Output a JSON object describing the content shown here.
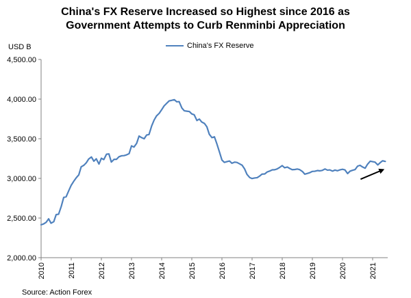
{
  "title_line1": "China's FX Reserve Increased so Highest since 2016 as",
  "title_line2": "Government Attempts to Curb Renminbi Appreciation",
  "unit_label": "USD B",
  "source": "Source: Action Forex",
  "chart_data": {
    "type": "line",
    "title": "China's FX Reserve Increased so Highest since 2016 as Government Attempts to Curb Renminbi Appreciation",
    "ylabel": "USD B",
    "xlabel": "",
    "ylim": [
      2000,
      4500
    ],
    "xlim": [
      2010,
      2021.5
    ],
    "yticks": [
      2000,
      2500,
      3000,
      3500,
      4000,
      4500
    ],
    "ytick_labels": [
      "2,000.00",
      "2,500.00",
      "3,000.00",
      "3,500.00",
      "4,000.00",
      "4,500.00"
    ],
    "xticks": [
      2010,
      2011,
      2012,
      2013,
      2014,
      2015,
      2016,
      2017,
      2018,
      2019,
      2020,
      2021
    ],
    "xtick_labels": [
      "2010",
      "2011",
      "2012",
      "2013",
      "2014",
      "2015",
      "2016",
      "2017",
      "2018",
      "2019",
      "2020",
      "2021"
    ],
    "legend": "top-center",
    "color": "#4F81BD",
    "series": [
      {
        "name": "China's FX Reserve",
        "x": [
          2010.0,
          2010.08,
          2010.17,
          2010.25,
          2010.33,
          2010.42,
          2010.5,
          2010.58,
          2010.67,
          2010.75,
          2010.83,
          2010.92,
          2011.0,
          2011.08,
          2011.17,
          2011.25,
          2011.33,
          2011.42,
          2011.5,
          2011.58,
          2011.67,
          2011.75,
          2011.83,
          2011.92,
          2012.0,
          2012.08,
          2012.17,
          2012.25,
          2012.33,
          2012.42,
          2012.5,
          2012.58,
          2012.67,
          2012.75,
          2012.83,
          2012.92,
          2013.0,
          2013.08,
          2013.17,
          2013.25,
          2013.33,
          2013.42,
          2013.5,
          2013.58,
          2013.67,
          2013.75,
          2013.83,
          2013.92,
          2014.0,
          2014.08,
          2014.17,
          2014.25,
          2014.33,
          2014.42,
          2014.5,
          2014.58,
          2014.67,
          2014.75,
          2014.83,
          2014.92,
          2015.0,
          2015.08,
          2015.17,
          2015.25,
          2015.33,
          2015.42,
          2015.5,
          2015.58,
          2015.67,
          2015.75,
          2015.83,
          2015.92,
          2016.0,
          2016.08,
          2016.17,
          2016.25,
          2016.33,
          2016.42,
          2016.5,
          2016.58,
          2016.67,
          2016.75,
          2016.83,
          2016.92,
          2017.0,
          2017.08,
          2017.17,
          2017.25,
          2017.33,
          2017.42,
          2017.5,
          2017.58,
          2017.67,
          2017.75,
          2017.83,
          2017.92,
          2018.0,
          2018.08,
          2018.17,
          2018.25,
          2018.33,
          2018.42,
          2018.5,
          2018.58,
          2018.67,
          2018.75,
          2018.83,
          2018.92,
          2019.0,
          2019.08,
          2019.17,
          2019.25,
          2019.33,
          2019.42,
          2019.5,
          2019.58,
          2019.67,
          2019.75,
          2019.83,
          2019.92,
          2020.0,
          2020.08,
          2020.17,
          2020.25,
          2020.33,
          2020.42,
          2020.5,
          2020.58,
          2020.67,
          2020.75,
          2020.83,
          2020.92,
          2021.0,
          2021.08,
          2021.17,
          2021.25,
          2021.33,
          2021.42
        ],
        "values": [
          2415,
          2425,
          2447,
          2490,
          2435,
          2454,
          2543,
          2548,
          2648,
          2760,
          2768,
          2847,
          2914,
          2962,
          3010,
          3044,
          3146,
          3166,
          3197,
          3245,
          3270,
          3217,
          3247,
          3181,
          3254,
          3237,
          3305,
          3309,
          3206,
          3240,
          3240,
          3272,
          3285,
          3287,
          3296,
          3312,
          3410,
          3395,
          3442,
          3534,
          3515,
          3500,
          3547,
          3553,
          3663,
          3736,
          3788,
          3821,
          3866,
          3914,
          3948,
          3978,
          3984,
          3993,
          3966,
          3968,
          3888,
          3853,
          3848,
          3843,
          3813,
          3802,
          3730,
          3748,
          3711,
          3693,
          3651,
          3557,
          3514,
          3525,
          3438,
          3330,
          3231,
          3202,
          3212,
          3219,
          3191,
          3205,
          3201,
          3185,
          3166,
          3121,
          3051,
          3011,
          2998,
          3005,
          3009,
          3029,
          3054,
          3056,
          3081,
          3092,
          3108,
          3109,
          3119,
          3140,
          3161,
          3134,
          3143,
          3125,
          3110,
          3112,
          3118,
          3110,
          3087,
          3053,
          3062,
          3073,
          3088,
          3090,
          3099,
          3095,
          3101,
          3119,
          3104,
          3107,
          3092,
          3105,
          3096,
          3108,
          3115,
          3107,
          3061,
          3091,
          3102,
          3112,
          3154,
          3165,
          3143,
          3128,
          3178,
          3217,
          3211,
          3205,
          3170,
          3198,
          3222,
          3214
        ]
      }
    ],
    "annotations": [
      {
        "type": "arrow",
        "label": "",
        "from_x": 2020.6,
        "from_y": 2990,
        "to_x": 2021.35,
        "to_y": 3110
      }
    ]
  }
}
